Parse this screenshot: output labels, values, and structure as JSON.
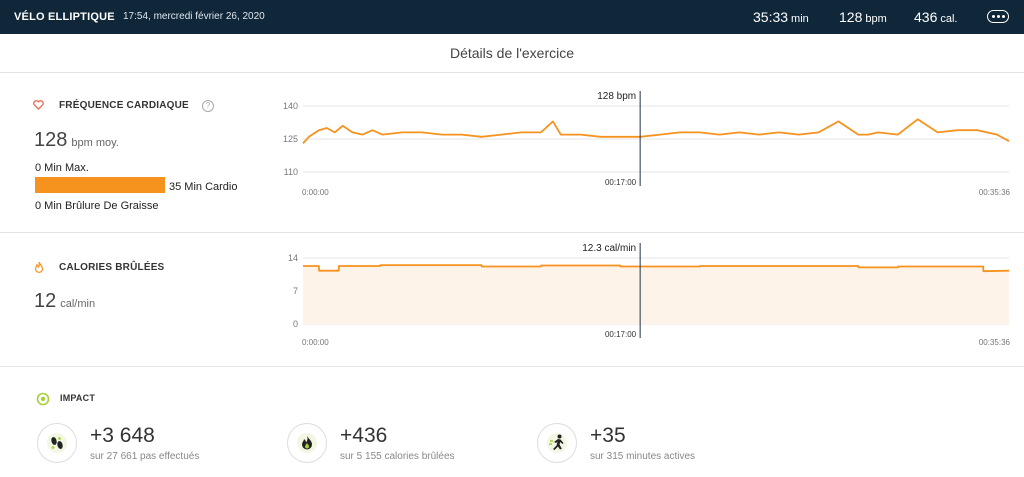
{
  "topbar": {
    "title": "VÉLO ELLIPTIQUE",
    "datetime": "17:54, mercredi février 26, 2020",
    "duration": "35:33",
    "duration_unit": "min",
    "bpm": "128",
    "bpm_unit": "bpm",
    "calories": "436",
    "calories_unit": "cal."
  },
  "page_title": "Détails de l'exercice",
  "heart": {
    "title": "FRÉQUENCE CARDIAQUE",
    "help": "?",
    "avg_value": "128",
    "avg_unit": "bpm moy.",
    "zone_max": "0 Min Max.",
    "zone_cardio": "35 Min Cardio",
    "zone_fat": "0 Min Brûlure De Graisse",
    "zone_cardio_fraction": 1.0
  },
  "calories": {
    "title": "CALORIES BRÛLÉES",
    "value": "12",
    "unit": "cal/min"
  },
  "impact": {
    "title": "IMPACT",
    "items": [
      {
        "value": "+3 648",
        "sub": "sur 27 661 pas effectués",
        "icon": "footprints-icon"
      },
      {
        "value": "+436",
        "sub": "sur 5 155 calories brûlées",
        "icon": "flame-icon"
      },
      {
        "value": "+35",
        "sub": "sur 315 minutes actives",
        "icon": "runner-icon"
      }
    ]
  },
  "colors": {
    "accent": "#f6921e",
    "topbar": "#0f2739",
    "impact_green": "#a6cf39",
    "heart_icon": "#e8694d"
  },
  "chart_data": [
    {
      "type": "line",
      "ylabel": "",
      "yticks": [
        "140",
        "125",
        "110"
      ],
      "ylim": [
        110,
        140
      ],
      "xticks": [
        "0:00:00",
        "00:35:36"
      ],
      "cursor_x": "00:17:00",
      "cursor_label": "128 bpm",
      "series": [
        {
          "x_minutes": [
            0,
            0.3,
            0.8,
            1.2,
            1.6,
            2.0,
            2.5,
            3.0,
            3.5,
            4.0,
            5,
            6,
            7,
            8,
            9,
            10,
            11,
            12,
            12.6,
            13,
            14,
            15,
            16,
            17,
            18,
            19,
            20,
            21,
            22,
            23,
            24,
            25,
            26,
            27,
            28,
            28.5,
            29,
            30,
            31,
            32,
            33,
            34,
            35,
            35.6
          ],
          "values": [
            123,
            126,
            129,
            130,
            128,
            131,
            128,
            127,
            129,
            127,
            128,
            128,
            127,
            127,
            126,
            127,
            128,
            128,
            133,
            127,
            127,
            126,
            126,
            126,
            127,
            128,
            128,
            127,
            128,
            127,
            128,
            127,
            128,
            133,
            127,
            127,
            128,
            127,
            134,
            128,
            129,
            129,
            127,
            124
          ]
        }
      ]
    },
    {
      "type": "area",
      "ylabel": "",
      "yticks": [
        "14",
        "7",
        "0"
      ],
      "ylim": [
        0,
        14
      ],
      "xticks": [
        "0:00:00",
        "00:35:36"
      ],
      "cursor_x": "00:17:00",
      "cursor_label": "12.3 cal/min",
      "series": [
        {
          "x_minutes": [
            0,
            0.8,
            0.81,
            1.8,
            1.81,
            3.9,
            3.91,
            9.0,
            9.01,
            12.0,
            12.01,
            16.0,
            16.01,
            20.0,
            20.01,
            28.0,
            28.01,
            30.0,
            30.01,
            34.3,
            34.31,
            35.6
          ],
          "values": [
            12.3,
            12.3,
            11.3,
            11.3,
            12.3,
            12.3,
            12.5,
            12.5,
            12.2,
            12.2,
            12.4,
            12.4,
            12.2,
            12.2,
            12.3,
            12.3,
            12.0,
            12.0,
            12.2,
            12.2,
            11.2,
            11.3
          ]
        }
      ]
    }
  ]
}
